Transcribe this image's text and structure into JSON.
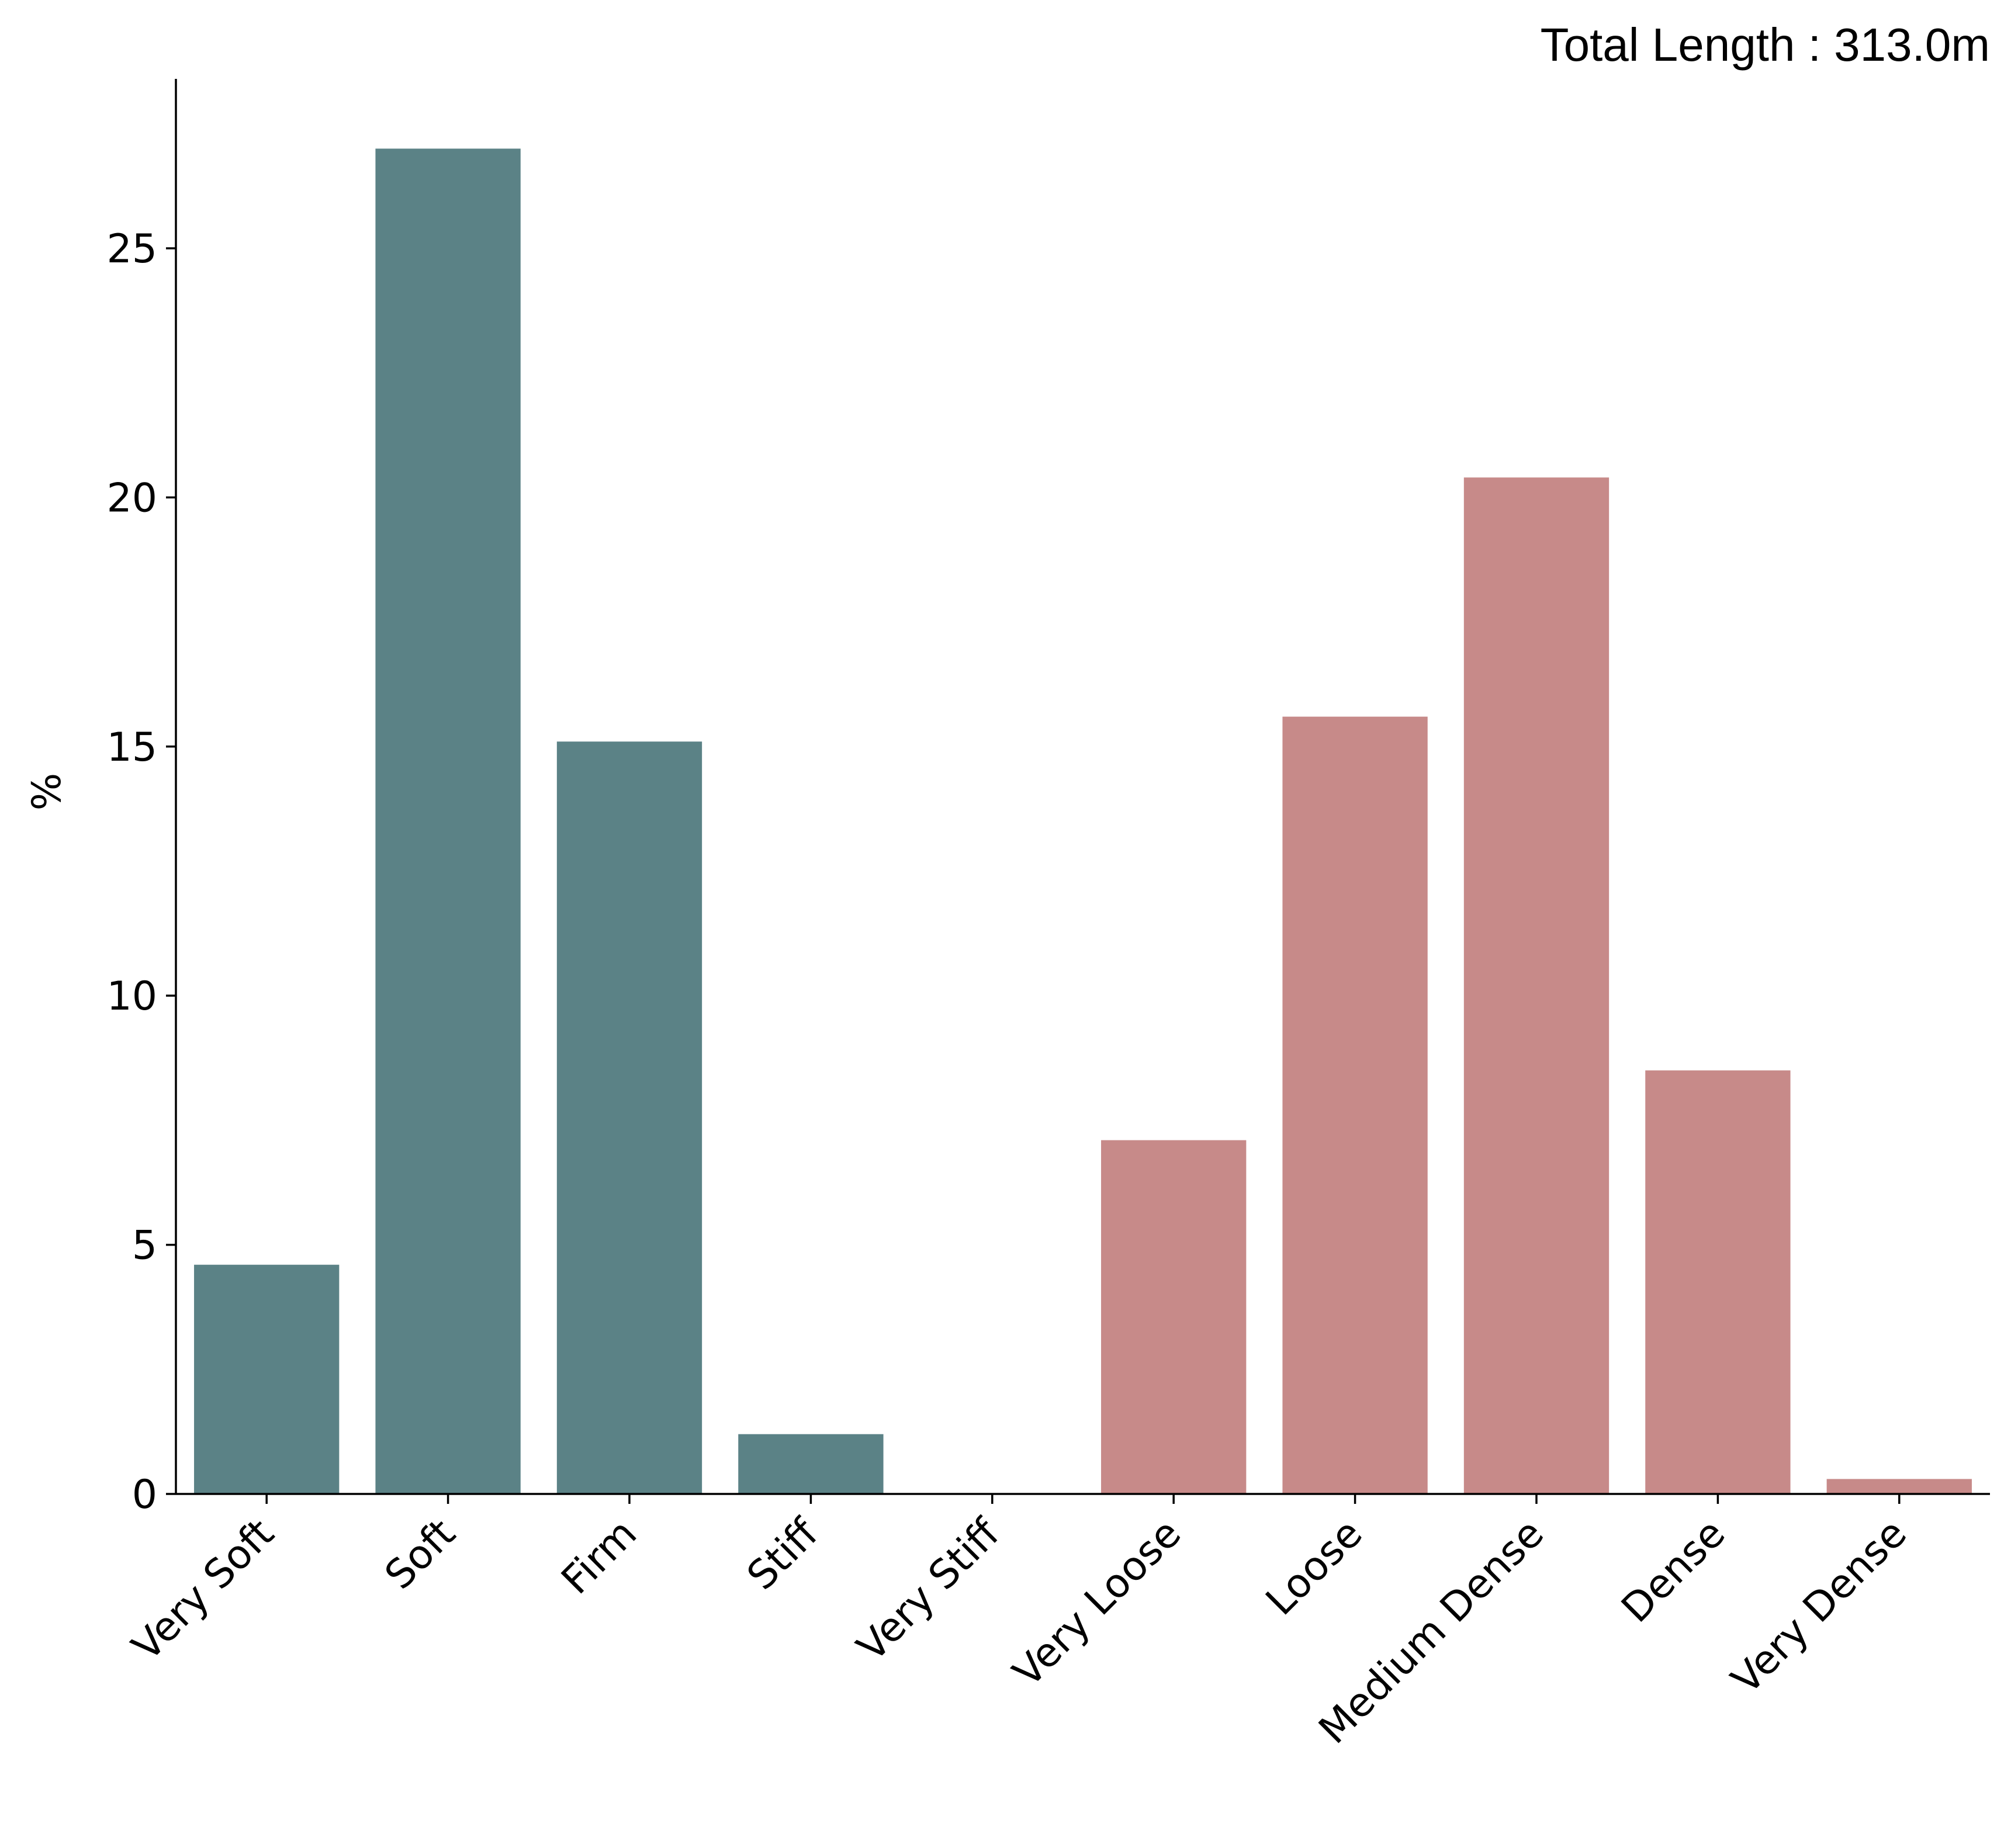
{
  "chart_data": {
    "type": "bar",
    "annotation": "Total Length : 313.0m",
    "ylabel": "%",
    "xlabel": "",
    "categories": [
      "Very Soft",
      "Soft",
      "Firm",
      "Stiff",
      "Very Stiff",
      "Very Loose",
      "Loose",
      "Medium Dense",
      "Dense",
      "Very Dense"
    ],
    "values": [
      4.6,
      27.0,
      15.1,
      1.2,
      0.0,
      7.1,
      15.6,
      20.4,
      8.5,
      0.3
    ],
    "bar_colors": [
      "#5b8286",
      "#5b8286",
      "#5b8286",
      "#5b8286",
      "#5b8286",
      "#c78a89",
      "#c78a89",
      "#c78a89",
      "#c78a89",
      "#c78a89"
    ],
    "yticks": [
      0,
      5,
      10,
      15,
      20,
      25
    ],
    "ylim": [
      0,
      28.4
    ],
    "grid": false
  }
}
